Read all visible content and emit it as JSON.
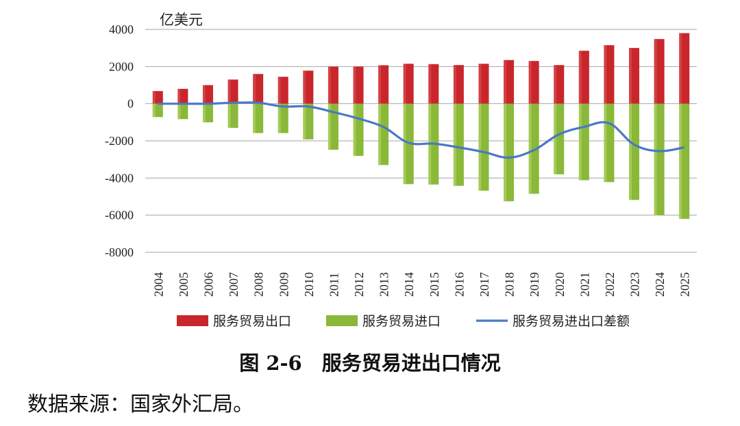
{
  "chart_data": {
    "type": "bar",
    "unit_label": "亿美元",
    "categories": [
      "2004",
      "2005",
      "2006",
      "2007",
      "2008",
      "2009",
      "2010",
      "2011",
      "2012",
      "2013",
      "2014",
      "2015",
      "2016",
      "2017",
      "2018",
      "2019",
      "2020",
      "2021",
      "2022",
      "2023",
      "2024",
      "2025"
    ],
    "series": [
      {
        "name": "服务贸易出口",
        "type": "bar",
        "color": "#c9262c",
        "values": [
          680,
          800,
          1000,
          1300,
          1600,
          1450,
          1780,
          2000,
          2000,
          2070,
          2150,
          2130,
          2080,
          2150,
          2350,
          2300,
          2080,
          2850,
          3150,
          3000,
          3480,
          3800
        ]
      },
      {
        "name": "服务贸易进口",
        "type": "bar",
        "color": "#8ab839",
        "values": [
          -720,
          -830,
          -1000,
          -1300,
          -1580,
          -1580,
          -1920,
          -2480,
          -2810,
          -3300,
          -4330,
          -4350,
          -4420,
          -4680,
          -5250,
          -4850,
          -3800,
          -4120,
          -4220,
          -5180,
          -6000,
          -6200
        ]
      },
      {
        "name": "服务贸易进出口差额",
        "type": "line",
        "color": "#4a78c4",
        "values": [
          0,
          0,
          0,
          50,
          50,
          -150,
          -150,
          -450,
          -800,
          -1250,
          -2100,
          -2150,
          -2350,
          -2600,
          -2900,
          -2500,
          -1650,
          -1250,
          -1050,
          -2200,
          -2550,
          -2350
        ]
      }
    ],
    "ylim": [
      -8000,
      4000
    ],
    "yticks": [
      4000,
      2000,
      0,
      -2000,
      -4000,
      -6000,
      -8000
    ],
    "ytick_labels": [
      "4000",
      "2000",
      "0",
      "-2000",
      "-4000",
      "-6000",
      "-8000"
    ],
    "grid": true,
    "legend_position": "bottom"
  },
  "caption": "图 2-6　服务贸易进出口情况",
  "source": "数据来源：国家外汇局。"
}
